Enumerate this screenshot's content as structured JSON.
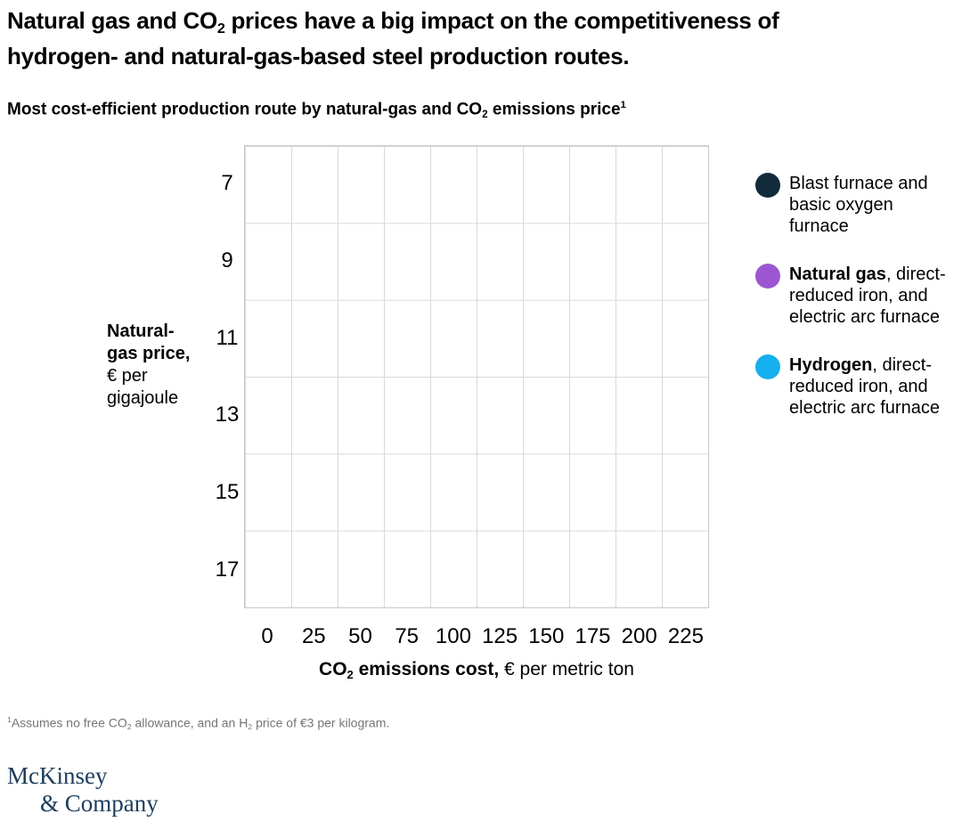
{
  "title": {
    "line1_before_sub": "Natural gas and CO",
    "line1_sub": "2",
    "line1_after_sub": " prices have a big impact on the competitiveness of",
    "line2": "hydrogen- and natural-gas-based steel production routes."
  },
  "subtitle": {
    "before_sub": "Most cost-efficient production route by natural-gas and CO",
    "sub": "2",
    "after_sub": " emissions price",
    "superscript": "1"
  },
  "chart_data": {
    "type": "heatmap",
    "title": "Most cost-efficient production route by natural-gas and CO2 emissions price",
    "x_ticks": [
      "0",
      "25",
      "50",
      "75",
      "100",
      "125",
      "150",
      "175",
      "200",
      "225"
    ],
    "y_ticks": [
      "7",
      "9",
      "11",
      "13",
      "15",
      "17"
    ],
    "grid": {
      "cols": 10,
      "rows": 6,
      "gridline_color": "#d9d9d9",
      "border_color": "#c9c9c9"
    },
    "cell_values": [],
    "xlabel": {
      "bold_before_sub": "CO",
      "sub": "2",
      "bold_after_sub": " emissions cost,",
      "regular": " € per metric ton"
    },
    "ylabel": {
      "bold_lines": [
        "Natural-",
        "gas price,"
      ],
      "regular_lines": [
        "€ per",
        "gigajoule"
      ]
    },
    "legend_position": "right",
    "legend": [
      {
        "name": "blast-furnace",
        "color": "#112b3a",
        "lines": [
          [
            {
              "text": "Blast furnace and",
              "bold": false
            }
          ],
          [
            {
              "text": "basic oxygen furnace",
              "bold": false
            }
          ]
        ]
      },
      {
        "name": "natural-gas",
        "color": "#9b57d1",
        "lines": [
          [
            {
              "text": "Natural gas",
              "bold": true
            },
            {
              "text": ", direct-",
              "bold": false
            }
          ],
          [
            {
              "text": "reduced iron, and",
              "bold": false
            }
          ],
          [
            {
              "text": "electric arc furnace",
              "bold": false
            }
          ]
        ]
      },
      {
        "name": "hydrogen",
        "color": "#16b0ee",
        "lines": [
          [
            {
              "text": "Hydrogen",
              "bold": true
            },
            {
              "text": ", direct-",
              "bold": false
            }
          ],
          [
            {
              "text": "reduced iron, and",
              "bold": false
            }
          ],
          [
            {
              "text": "electric arc furnace",
              "bold": false
            }
          ]
        ]
      }
    ]
  },
  "footnote": {
    "superscript": "1",
    "p1": "Assumes no free CO",
    "s1": "2",
    "p2": " allowance, and an H",
    "s2": "2",
    "p3": " price of €3 per kilogram."
  },
  "logo": {
    "line1": "McKinsey",
    "line2": "& Company",
    "color": "#1e3d5c"
  }
}
